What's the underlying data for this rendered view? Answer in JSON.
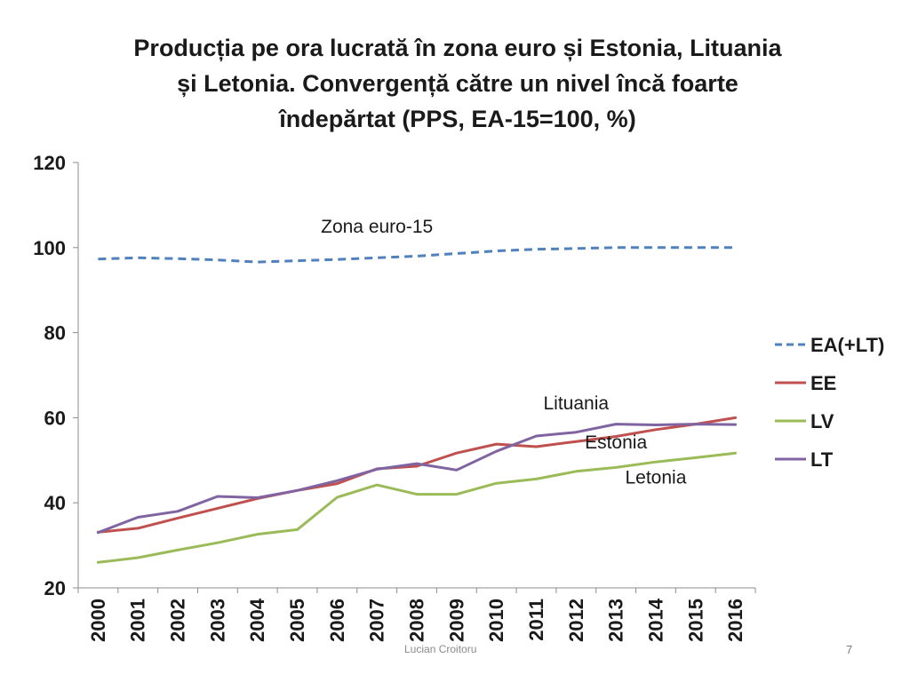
{
  "slide": {
    "title_lines": [
      "Producția pe ora lucrată în zona euro și Estonia, Lituania",
      "și Letonia. Convergență către un nivel încă foarte",
      "îndepărtat (PPS, EA-15=100, %)"
    ],
    "footer": "Lucian Croitoru",
    "page_number": "7"
  },
  "chart_data": {
    "type": "line",
    "title": "Producția pe ora lucrată în zona euro și Estonia, Lituania și Letonia. Convergență către un nivel încă foarte îndepărtat (PPS, EA-15=100, %)",
    "x": [
      "2000",
      "2001",
      "2002",
      "2003",
      "2004",
      "2005",
      "2006",
      "2007",
      "2008",
      "2009",
      "2010",
      "2011",
      "2012",
      "2013",
      "2014",
      "2015",
      "2016"
    ],
    "ylim": [
      20,
      120
    ],
    "yticks": [
      20,
      40,
      60,
      80,
      100,
      120
    ],
    "grid": false,
    "legend_position": "right",
    "series": [
      {
        "name": "EA(+LT)",
        "color": "#4f81bd",
        "dash": true,
        "values": [
          97.3,
          97.6,
          97.4,
          97.1,
          96.6,
          96.9,
          97.2,
          97.6,
          98.0,
          98.6,
          99.2,
          99.6,
          99.8,
          100.0,
          100.0,
          100.0,
          100.0
        ]
      },
      {
        "name": "EE",
        "color": "#c0504d",
        "dash": false,
        "values": [
          33.1,
          34.0,
          36.4,
          38.7,
          41.0,
          42.9,
          44.5,
          48.0,
          48.6,
          51.7,
          53.8,
          53.2,
          54.4,
          55.6,
          57.2,
          58.5,
          60.0
        ]
      },
      {
        "name": "LV",
        "color": "#9bbb59",
        "dash": false,
        "values": [
          26.0,
          27.1,
          28.9,
          30.6,
          32.6,
          33.7,
          41.3,
          44.2,
          42.0,
          42.0,
          44.6,
          45.6,
          47.4,
          48.3,
          49.6,
          50.6,
          51.7
        ]
      },
      {
        "name": "LT",
        "color": "#8064a2",
        "dash": false,
        "values": [
          33.0,
          36.6,
          38.0,
          41.5,
          41.2,
          42.9,
          45.2,
          47.9,
          49.2,
          47.7,
          52.1,
          55.7,
          56.6,
          58.5,
          58.3,
          58.5,
          58.4
        ]
      }
    ],
    "annotations": [
      {
        "text": "Zona euro-15",
        "x": "2007",
        "y": 103.5
      },
      {
        "text": "Lituania",
        "x": "2012",
        "y": 62.0
      },
      {
        "text": "Estonia",
        "x": "2013",
        "y": 52.8
      },
      {
        "text": "Letonia",
        "x": "2014",
        "y": 44.5
      }
    ]
  }
}
